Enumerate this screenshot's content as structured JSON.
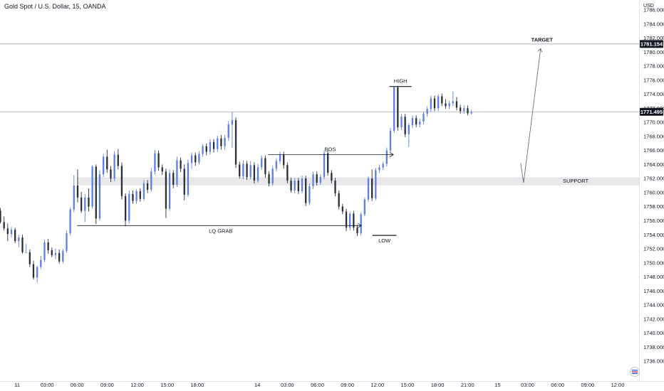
{
  "header": {
    "symbol_title": "Gold Spot / U.S. Dollar, 15, OANDA",
    "currency": "USD"
  },
  "chart_data": {
    "type": "candlestick",
    "title": "Gold Spot / U.S. Dollar, 15, OANDA",
    "y_unit": "USD",
    "ylim": [
      1735.0,
      1789.0
    ],
    "y_ticks": [
      "1786.000",
      "1784.000",
      "1782.000",
      "1780.000",
      "1778.000",
      "1776.000",
      "1774.000",
      "1772.000",
      "1770.000",
      "1768.000",
      "1766.000",
      "1764.000",
      "1762.000",
      "1760.000",
      "1758.000",
      "1756.000",
      "1754.000",
      "1752.000",
      "1750.000",
      "1748.000",
      "1746.000",
      "1744.000",
      "1742.000",
      "1740.000",
      "1738.000",
      "1736.000"
    ],
    "x_ticks": [
      {
        "label": "11",
        "hour": 0
      },
      {
        "label": "03:00",
        "hour": 3
      },
      {
        "label": "06:00",
        "hour": 6
      },
      {
        "label": "09:00",
        "hour": 9
      },
      {
        "label": "12:00",
        "hour": 12
      },
      {
        "label": "15:00",
        "hour": 15
      },
      {
        "label": "18:00",
        "hour": 18
      },
      {
        "label": "14",
        "hour": 24
      },
      {
        "label": "03:00",
        "hour": 27
      },
      {
        "label": "06:00",
        "hour": 30
      },
      {
        "label": "09:00",
        "hour": 33
      },
      {
        "label": "12:00",
        "hour": 36
      },
      {
        "label": "15:00",
        "hour": 39
      },
      {
        "label": "18:00",
        "hour": 42
      },
      {
        "label": "21:00",
        "hour": 45
      },
      {
        "label": "15",
        "hour": 48
      },
      {
        "label": "03:00",
        "hour": 51
      },
      {
        "label": "06:00",
        "hour": 54
      },
      {
        "label": "09:00",
        "hour": 57
      },
      {
        "label": "12:00",
        "hour": 60
      }
    ],
    "up_color": "#5b7fe6",
    "down_color": "#2a2e39",
    "price_lines": [
      {
        "name": "target",
        "value": 1781.154,
        "label": "1781.154"
      },
      {
        "name": "current",
        "value": 1771.495,
        "label": "1771.495"
      }
    ],
    "zones": [
      {
        "name": "support",
        "from": 1761.1,
        "to": 1762.1,
        "label": "SUPPORT",
        "start_hour": 6
      }
    ],
    "annotations": {
      "lq_grab": {
        "label": "LQ GRAB",
        "value": 1755.3,
        "from_hour": 6.0,
        "to_hour": 34.4
      },
      "bos": {
        "label": "BOS",
        "value": 1765.4,
        "from_hour": 25.1,
        "to_hour": 37.6
      },
      "high": {
        "label": "HIGH",
        "value": 1775.1,
        "from_hour": 37.2,
        "to_hour": 39.4
      },
      "low": {
        "label": "LOW",
        "value": 1753.9,
        "from_hour": 35.5,
        "to_hour": 37.9
      },
      "target": {
        "label": "TARGET",
        "start_hour": 50.3,
        "start_value": 1764.2,
        "mid_hour": 50.6,
        "mid_value": 1761.4,
        "end_hour": 52.3,
        "end_value": 1780.5
      }
    },
    "candles": [
      [
        1757.4,
        1757.8,
        1755.6,
        1755.8
      ],
      [
        1755.8,
        1756.6,
        1754.6,
        1754.9
      ],
      [
        1754.9,
        1755.6,
        1753.1,
        1754.1
      ],
      [
        1754.1,
        1755.1,
        1753.6,
        1754.7
      ],
      [
        1754.7,
        1755.0,
        1752.8,
        1753.1
      ],
      [
        1753.1,
        1754.0,
        1752.2,
        1753.6
      ],
      [
        1753.6,
        1754.0,
        1751.3,
        1751.5
      ],
      [
        1751.5,
        1752.7,
        1751.4,
        1751.5
      ],
      [
        1751.5,
        1751.9,
        1749.4,
        1749.8
      ],
      [
        1749.8,
        1750.3,
        1747.6,
        1747.9
      ],
      [
        1747.9,
        1749.6,
        1747.2,
        1749.4
      ],
      [
        1749.4,
        1751.0,
        1749.1,
        1750.4
      ],
      [
        1750.4,
        1753.3,
        1750.1,
        1752.9
      ],
      [
        1752.9,
        1753.4,
        1751.3,
        1751.8
      ],
      [
        1751.8,
        1752.2,
        1750.8,
        1751.1
      ],
      [
        1751.1,
        1752.0,
        1750.5,
        1751.4
      ],
      [
        1751.4,
        1751.9,
        1749.9,
        1750.2
      ],
      [
        1750.2,
        1752.0,
        1749.9,
        1751.7
      ],
      [
        1751.7,
        1754.6,
        1751.4,
        1754.2
      ],
      [
        1754.2,
        1757.9,
        1753.9,
        1757.6
      ],
      [
        1757.6,
        1762.5,
        1757.2,
        1761.0
      ],
      [
        1761.0,
        1763.3,
        1758.6,
        1759.3
      ],
      [
        1759.3,
        1760.1,
        1757.1,
        1757.4
      ],
      [
        1757.4,
        1759.8,
        1755.8,
        1759.3
      ],
      [
        1759.3,
        1760.6,
        1757.3,
        1758.0
      ],
      [
        1758.0,
        1763.9,
        1757.7,
        1763.7
      ],
      [
        1763.7,
        1764.0,
        1755.5,
        1756.3
      ],
      [
        1756.3,
        1763.2,
        1756.0,
        1762.6
      ],
      [
        1762.6,
        1765.5,
        1762.2,
        1765.1
      ],
      [
        1765.1,
        1766.1,
        1762.8,
        1763.3
      ],
      [
        1763.3,
        1763.8,
        1761.5,
        1762.0
      ],
      [
        1762.0,
        1765.9,
        1761.6,
        1765.4
      ],
      [
        1765.4,
        1766.2,
        1763.3,
        1763.8
      ],
      [
        1763.8,
        1764.3,
        1759.0,
        1759.5
      ],
      [
        1759.5,
        1759.9,
        1755.2,
        1756.0
      ],
      [
        1756.0,
        1760.3,
        1755.6,
        1759.8
      ],
      [
        1759.8,
        1760.3,
        1758.4,
        1758.8
      ],
      [
        1758.8,
        1760.5,
        1758.4,
        1760.2
      ],
      [
        1760.2,
        1760.6,
        1758.7,
        1759.1
      ],
      [
        1759.1,
        1761.8,
        1758.8,
        1761.3
      ],
      [
        1761.3,
        1761.8,
        1759.9,
        1760.4
      ],
      [
        1760.4,
        1763.5,
        1760.1,
        1763.0
      ],
      [
        1763.0,
        1766.1,
        1762.6,
        1765.6
      ],
      [
        1765.6,
        1766.0,
        1763.1,
        1763.6
      ],
      [
        1763.6,
        1764.0,
        1762.5,
        1763.0
      ],
      [
        1763.0,
        1763.4,
        1756.4,
        1757.7
      ],
      [
        1757.7,
        1763.3,
        1757.4,
        1762.8
      ],
      [
        1762.8,
        1763.2,
        1760.6,
        1761.1
      ],
      [
        1761.1,
        1765.1,
        1760.8,
        1764.6
      ],
      [
        1764.6,
        1765.0,
        1762.9,
        1763.4
      ],
      [
        1763.4,
        1764.0,
        1758.9,
        1759.7
      ],
      [
        1759.7,
        1764.7,
        1759.4,
        1764.2
      ],
      [
        1764.2,
        1765.7,
        1763.4,
        1765.3
      ],
      [
        1765.3,
        1765.7,
        1763.8,
        1764.3
      ],
      [
        1764.3,
        1765.9,
        1764.0,
        1765.5
      ],
      [
        1765.5,
        1766.9,
        1765.1,
        1766.6
      ],
      [
        1766.6,
        1767.0,
        1765.3,
        1765.8
      ],
      [
        1765.8,
        1767.6,
        1765.4,
        1767.2
      ],
      [
        1767.2,
        1767.6,
        1765.7,
        1766.2
      ],
      [
        1766.2,
        1768.1,
        1765.8,
        1767.7
      ],
      [
        1767.7,
        1768.2,
        1766.1,
        1766.6
      ],
      [
        1766.6,
        1768.2,
        1766.1,
        1767.8
      ],
      [
        1767.8,
        1770.2,
        1767.4,
        1769.7
      ],
      [
        1769.7,
        1771.5,
        1766.4,
        1770.3
      ],
      [
        1770.3,
        1770.7,
        1763.5,
        1764.0
      ],
      [
        1764.0,
        1764.4,
        1762.0,
        1762.3
      ],
      [
        1762.3,
        1764.6,
        1761.9,
        1764.1
      ],
      [
        1764.1,
        1764.5,
        1761.8,
        1762.2
      ],
      [
        1762.2,
        1764.5,
        1761.9,
        1763.9
      ],
      [
        1763.9,
        1764.3,
        1761.3,
        1761.7
      ],
      [
        1761.7,
        1764.1,
        1761.4,
        1763.6
      ],
      [
        1763.6,
        1765.3,
        1763.2,
        1764.9
      ],
      [
        1764.9,
        1765.3,
        1762.1,
        1762.6
      ],
      [
        1762.6,
        1763.0,
        1760.9,
        1761.3
      ],
      [
        1761.3,
        1763.8,
        1761.0,
        1763.4
      ],
      [
        1763.4,
        1764.9,
        1763.0,
        1764.5
      ],
      [
        1764.5,
        1765.8,
        1764.1,
        1765.4
      ],
      [
        1765.4,
        1765.8,
        1763.4,
        1763.9
      ],
      [
        1763.9,
        1764.3,
        1761.3,
        1761.7
      ],
      [
        1761.7,
        1762.1,
        1760.0,
        1760.3
      ],
      [
        1760.3,
        1762.1,
        1759.9,
        1761.7
      ],
      [
        1761.7,
        1762.1,
        1759.8,
        1760.2
      ],
      [
        1760.2,
        1762.4,
        1759.9,
        1762.0
      ],
      [
        1762.0,
        1762.4,
        1758.1,
        1758.5
      ],
      [
        1758.5,
        1761.3,
        1758.2,
        1760.9
      ],
      [
        1760.9,
        1763.0,
        1760.5,
        1762.6
      ],
      [
        1762.6,
        1763.0,
        1761.0,
        1761.4
      ],
      [
        1761.4,
        1762.6,
        1761.1,
        1762.2
      ],
      [
        1762.2,
        1766.0,
        1761.9,
        1765.6
      ],
      [
        1765.6,
        1766.0,
        1762.4,
        1762.8
      ],
      [
        1762.8,
        1763.2,
        1761.3,
        1761.7
      ],
      [
        1761.7,
        1762.1,
        1759.5,
        1759.9
      ],
      [
        1759.9,
        1760.3,
        1757.6,
        1758.0
      ],
      [
        1758.0,
        1758.4,
        1756.9,
        1757.3
      ],
      [
        1757.3,
        1757.7,
        1754.5,
        1755.0
      ],
      [
        1755.0,
        1757.3,
        1754.6,
        1757.0
      ],
      [
        1757.0,
        1757.4,
        1754.6,
        1755.0
      ],
      [
        1755.0,
        1755.4,
        1753.8,
        1754.2
      ],
      [
        1754.2,
        1757.2,
        1753.9,
        1756.9
      ],
      [
        1756.9,
        1759.3,
        1756.6,
        1759.0
      ],
      [
        1759.0,
        1762.3,
        1758.7,
        1762.0
      ],
      [
        1762.0,
        1763.3,
        1758.8,
        1759.2
      ],
      [
        1759.2,
        1763.5,
        1758.9,
        1763.2
      ],
      [
        1763.2,
        1764.0,
        1762.8,
        1763.6
      ],
      [
        1763.6,
        1764.4,
        1763.2,
        1764.1
      ],
      [
        1764.1,
        1766.4,
        1763.7,
        1766.0
      ],
      [
        1766.0,
        1769.2,
        1765.6,
        1768.8
      ],
      [
        1768.8,
        1775.1,
        1768.5,
        1775.0
      ],
      [
        1775.0,
        1775.2,
        1768.8,
        1769.3
      ],
      [
        1769.3,
        1771.2,
        1768.9,
        1770.8
      ],
      [
        1770.8,
        1771.2,
        1767.9,
        1768.3
      ],
      [
        1768.3,
        1769.9,
        1766.5,
        1769.6
      ],
      [
        1769.6,
        1771.0,
        1769.2,
        1770.6
      ],
      [
        1770.6,
        1771.0,
        1769.3,
        1769.7
      ],
      [
        1769.7,
        1770.5,
        1769.3,
        1770.1
      ],
      [
        1770.1,
        1771.5,
        1769.7,
        1771.2
      ],
      [
        1771.2,
        1772.3,
        1770.8,
        1771.9
      ],
      [
        1771.9,
        1773.8,
        1771.5,
        1773.4
      ],
      [
        1773.4,
        1773.8,
        1771.6,
        1772.0
      ],
      [
        1772.0,
        1774.0,
        1771.6,
        1773.7
      ],
      [
        1773.7,
        1774.1,
        1772.3,
        1772.7
      ],
      [
        1772.7,
        1773.3,
        1771.9,
        1772.3
      ],
      [
        1772.3,
        1773.1,
        1771.9,
        1772.7
      ],
      [
        1772.7,
        1774.4,
        1772.3,
        1773.0
      ],
      [
        1773.0,
        1773.6,
        1771.7,
        1772.1
      ],
      [
        1772.1,
        1772.5,
        1771.2,
        1771.6
      ],
      [
        1771.6,
        1772.4,
        1771.2,
        1772.0
      ],
      [
        1772.0,
        1772.4,
        1771.0,
        1771.3
      ],
      [
        1771.3,
        1771.8,
        1771.1,
        1771.5
      ]
    ]
  }
}
